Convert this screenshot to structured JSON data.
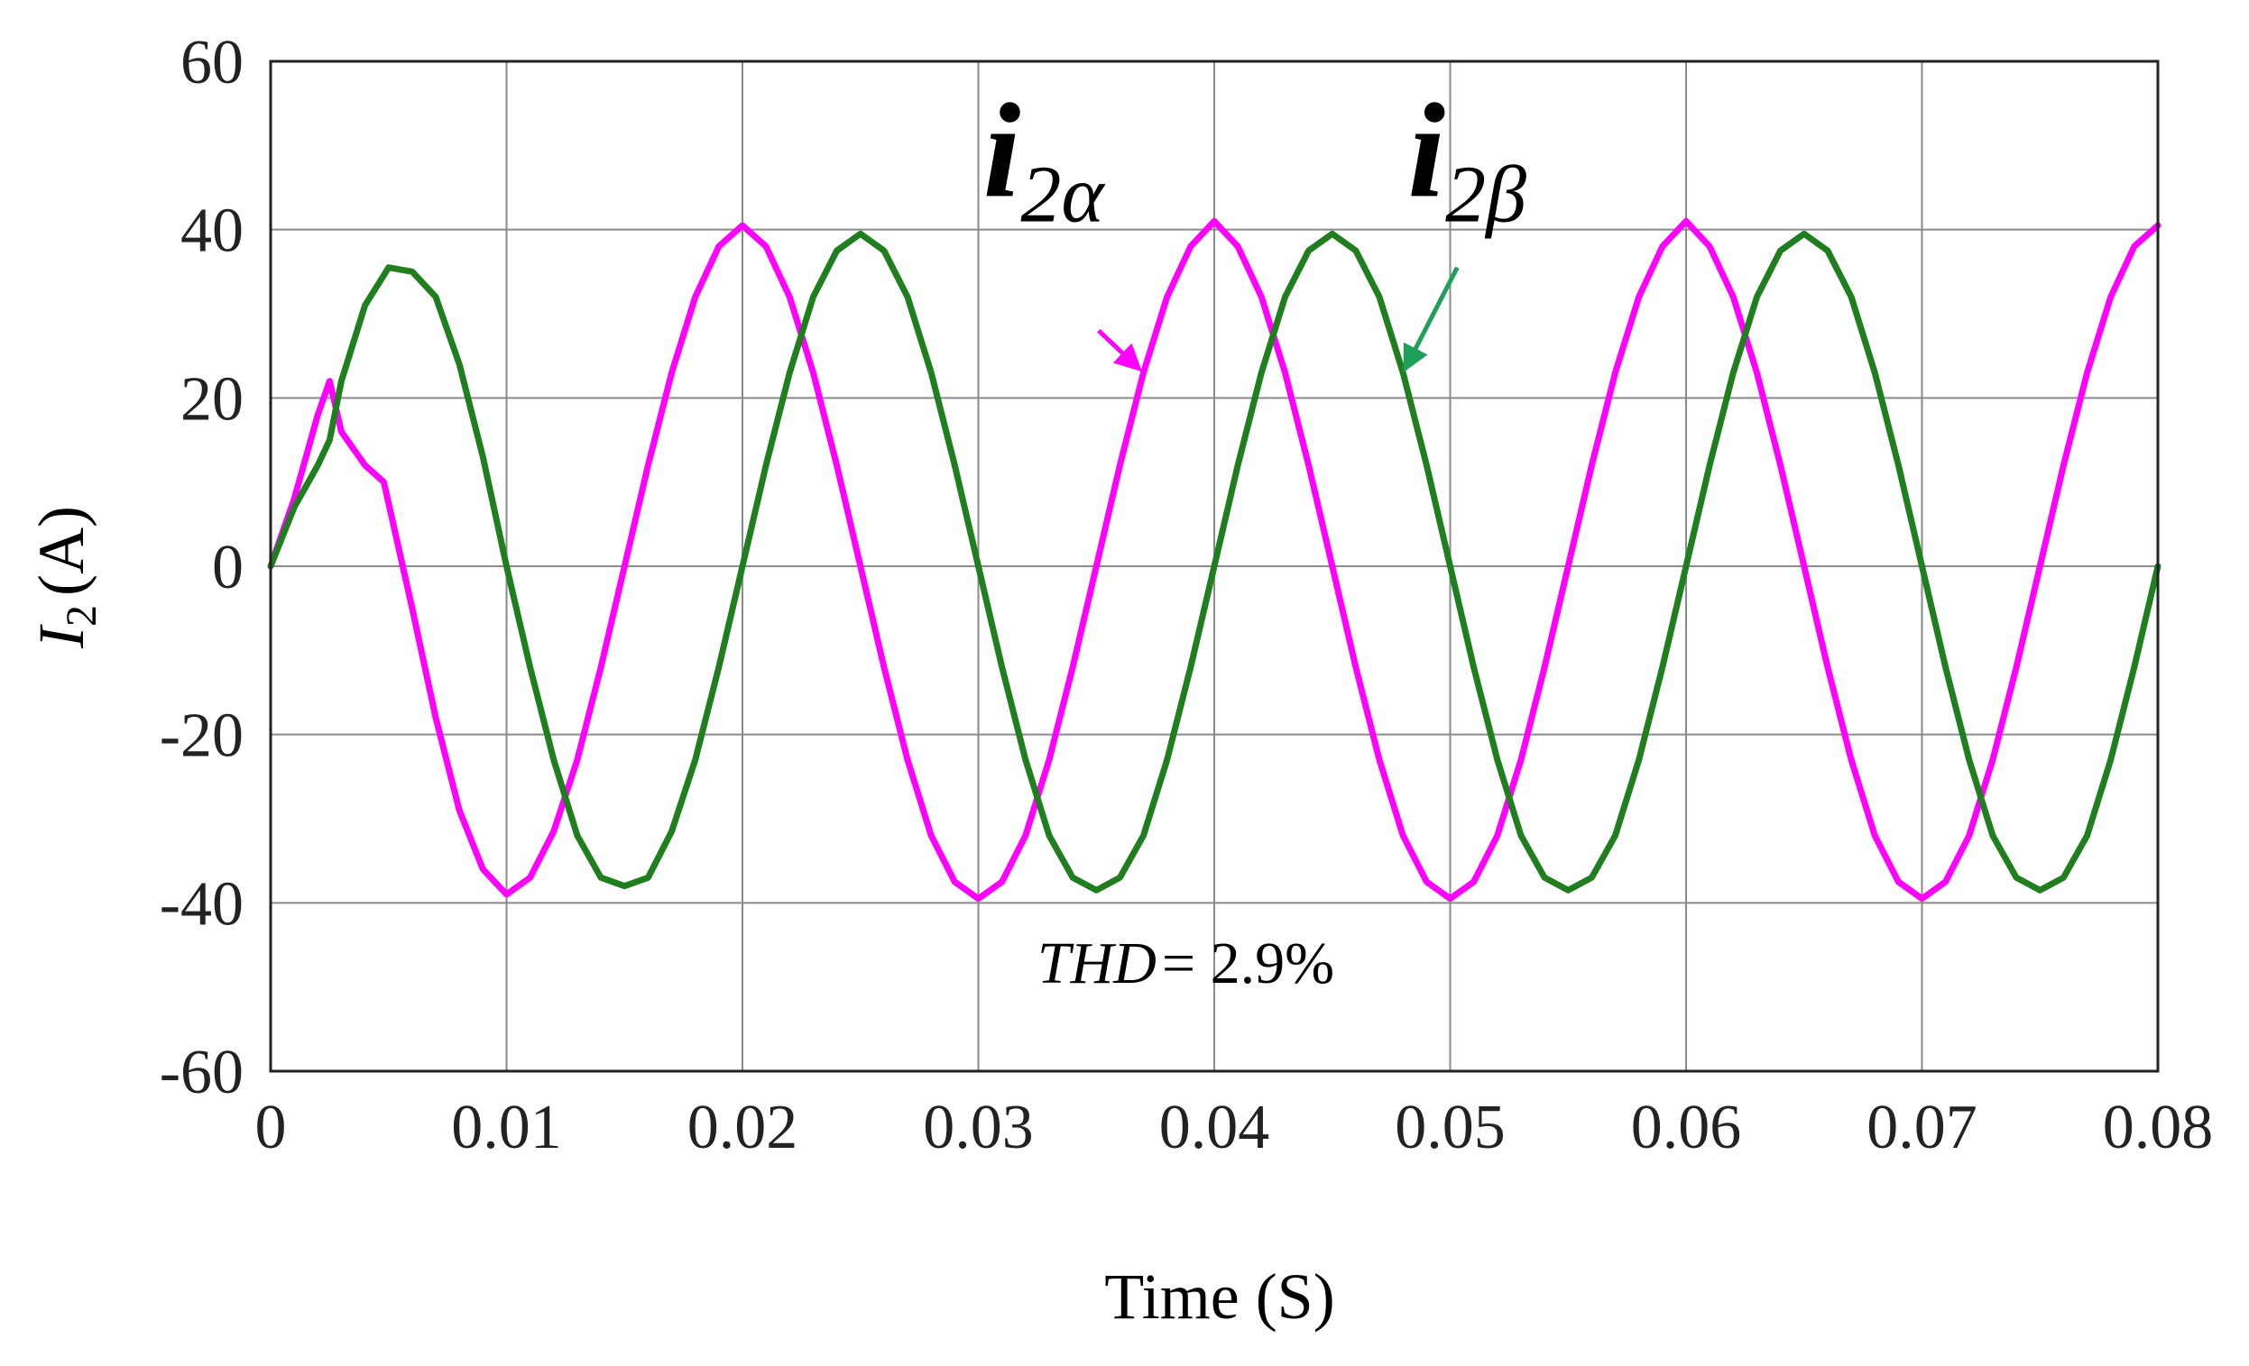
{
  "chart_data": {
    "type": "line",
    "title": "",
    "xlabel": "Time (S)",
    "ylabel": "I2 (A)",
    "ylabel_main": "I",
    "ylabel_sub": "2",
    "ylabel_unit": "(A)",
    "xlim": [
      0,
      0.08
    ],
    "ylim": [
      -60,
      60
    ],
    "xticks": [
      0,
      0.01,
      0.02,
      0.03,
      0.04,
      0.05,
      0.06,
      0.07,
      0.08
    ],
    "xtick_labels": [
      "0",
      "0.01",
      "0.02",
      "0.03",
      "0.04",
      "0.05",
      "0.06",
      "0.07",
      "0.08"
    ],
    "yticks": [
      60,
      40,
      20,
      0,
      -20,
      -40,
      -60
    ],
    "ytick_labels": [
      "60",
      "40",
      "20",
      "0",
      "-20",
      "-40",
      "-60"
    ],
    "grid": true,
    "series": [
      {
        "name": "i2α",
        "color": "#ff00ff",
        "points": [
          [
            0.0,
            0.0
          ],
          [
            0.001,
            8.0
          ],
          [
            0.002,
            18.0
          ],
          [
            0.0025,
            22.0
          ],
          [
            0.003,
            16.0
          ],
          [
            0.004,
            12.0
          ],
          [
            0.0048,
            10.0
          ],
          [
            0.006,
            -5.0
          ],
          [
            0.007,
            -18.0
          ],
          [
            0.008,
            -29.0
          ],
          [
            0.009,
            -36.0
          ],
          [
            0.01,
            -39.0
          ],
          [
            0.011,
            -37.0
          ],
          [
            0.012,
            -31.5
          ],
          [
            0.013,
            -23.0
          ],
          [
            0.014,
            -12.0
          ],
          [
            0.015,
            0.0
          ],
          [
            0.016,
            12.0
          ],
          [
            0.017,
            23.0
          ],
          [
            0.018,
            32.0
          ],
          [
            0.019,
            38.0
          ],
          [
            0.02,
            40.5
          ],
          [
            0.021,
            38.0
          ],
          [
            0.022,
            32.0
          ],
          [
            0.023,
            23.0
          ],
          [
            0.024,
            12.0
          ],
          [
            0.025,
            0.0
          ],
          [
            0.026,
            -12.0
          ],
          [
            0.027,
            -23.0
          ],
          [
            0.028,
            -32.0
          ],
          [
            0.029,
            -37.5
          ],
          [
            0.03,
            -39.5
          ],
          [
            0.031,
            -37.5
          ],
          [
            0.032,
            -32.0
          ],
          [
            0.033,
            -23.0
          ],
          [
            0.034,
            -12.0
          ],
          [
            0.035,
            0.0
          ],
          [
            0.036,
            12.0
          ],
          [
            0.037,
            23.0
          ],
          [
            0.038,
            32.0
          ],
          [
            0.039,
            38.0
          ],
          [
            0.04,
            41.0
          ],
          [
            0.041,
            38.0
          ],
          [
            0.042,
            32.0
          ],
          [
            0.043,
            23.0
          ],
          [
            0.044,
            12.0
          ],
          [
            0.045,
            0.0
          ],
          [
            0.046,
            -12.0
          ],
          [
            0.047,
            -23.0
          ],
          [
            0.048,
            -32.0
          ],
          [
            0.049,
            -37.5
          ],
          [
            0.05,
            -39.5
          ],
          [
            0.051,
            -37.5
          ],
          [
            0.052,
            -32.0
          ],
          [
            0.053,
            -23.0
          ],
          [
            0.054,
            -12.0
          ],
          [
            0.055,
            0.0
          ],
          [
            0.056,
            12.0
          ],
          [
            0.057,
            23.0
          ],
          [
            0.058,
            32.0
          ],
          [
            0.059,
            38.0
          ],
          [
            0.06,
            41.0
          ],
          [
            0.061,
            38.0
          ],
          [
            0.062,
            32.0
          ],
          [
            0.063,
            23.0
          ],
          [
            0.064,
            12.0
          ],
          [
            0.065,
            0.0
          ],
          [
            0.066,
            -12.0
          ],
          [
            0.067,
            -23.0
          ],
          [
            0.068,
            -32.0
          ],
          [
            0.069,
            -37.5
          ],
          [
            0.07,
            -39.5
          ],
          [
            0.071,
            -37.5
          ],
          [
            0.072,
            -32.0
          ],
          [
            0.073,
            -23.0
          ],
          [
            0.074,
            -12.0
          ],
          [
            0.075,
            0.0
          ],
          [
            0.076,
            12.0
          ],
          [
            0.077,
            23.0
          ],
          [
            0.078,
            32.0
          ],
          [
            0.079,
            38.0
          ],
          [
            0.08,
            40.5
          ]
        ]
      },
      {
        "name": "i2β",
        "color": "#1f7f1f",
        "points": [
          [
            0.0,
            0.0
          ],
          [
            0.001,
            7.0
          ],
          [
            0.002,
            12.0
          ],
          [
            0.0025,
            15.0
          ],
          [
            0.003,
            22.0
          ],
          [
            0.004,
            31.0
          ],
          [
            0.005,
            35.5
          ],
          [
            0.006,
            35.0
          ],
          [
            0.007,
            32.0
          ],
          [
            0.008,
            24.0
          ],
          [
            0.009,
            13.0
          ],
          [
            0.01,
            0.0
          ],
          [
            0.011,
            -12.0
          ],
          [
            0.012,
            -23.0
          ],
          [
            0.013,
            -32.0
          ],
          [
            0.014,
            -37.0
          ],
          [
            0.015,
            -38.0
          ],
          [
            0.016,
            -37.0
          ],
          [
            0.017,
            -31.5
          ],
          [
            0.018,
            -23.0
          ],
          [
            0.019,
            -12.0
          ],
          [
            0.02,
            0.0
          ],
          [
            0.021,
            12.0
          ],
          [
            0.022,
            23.0
          ],
          [
            0.023,
            32.0
          ],
          [
            0.024,
            37.5
          ],
          [
            0.025,
            39.5
          ],
          [
            0.026,
            37.5
          ],
          [
            0.027,
            32.0
          ],
          [
            0.028,
            23.0
          ],
          [
            0.029,
            12.0
          ],
          [
            0.03,
            0.0
          ],
          [
            0.031,
            -12.0
          ],
          [
            0.032,
            -23.0
          ],
          [
            0.033,
            -32.0
          ],
          [
            0.034,
            -37.0
          ],
          [
            0.035,
            -38.5
          ],
          [
            0.036,
            -37.0
          ],
          [
            0.037,
            -32.0
          ],
          [
            0.038,
            -23.0
          ],
          [
            0.039,
            -12.0
          ],
          [
            0.04,
            0.0
          ],
          [
            0.041,
            12.0
          ],
          [
            0.042,
            23.0
          ],
          [
            0.043,
            32.0
          ],
          [
            0.044,
            37.5
          ],
          [
            0.045,
            39.5
          ],
          [
            0.046,
            37.5
          ],
          [
            0.047,
            32.0
          ],
          [
            0.048,
            23.0
          ],
          [
            0.049,
            12.0
          ],
          [
            0.05,
            0.0
          ],
          [
            0.051,
            -12.0
          ],
          [
            0.052,
            -23.0
          ],
          [
            0.053,
            -32.0
          ],
          [
            0.054,
            -37.0
          ],
          [
            0.055,
            -38.5
          ],
          [
            0.056,
            -37.0
          ],
          [
            0.057,
            -32.0
          ],
          [
            0.058,
            -23.0
          ],
          [
            0.059,
            -12.0
          ],
          [
            0.06,
            0.0
          ],
          [
            0.061,
            12.0
          ],
          [
            0.062,
            23.0
          ],
          [
            0.063,
            32.0
          ],
          [
            0.064,
            37.5
          ],
          [
            0.065,
            39.5
          ],
          [
            0.066,
            37.5
          ],
          [
            0.067,
            32.0
          ],
          [
            0.068,
            23.0
          ],
          [
            0.069,
            12.0
          ],
          [
            0.07,
            0.0
          ],
          [
            0.071,
            -12.0
          ],
          [
            0.072,
            -23.0
          ],
          [
            0.073,
            -32.0
          ],
          [
            0.074,
            -37.0
          ],
          [
            0.075,
            -38.5
          ],
          [
            0.076,
            -37.0
          ],
          [
            0.077,
            -32.0
          ],
          [
            0.078,
            -23.0
          ],
          [
            0.079,
            -12.0
          ],
          [
            0.08,
            0.0
          ]
        ]
      }
    ],
    "annotations": [
      {
        "id": "label-i2a",
        "main": "i",
        "sub": "2α",
        "color": "#ff00ff",
        "text_at": [
          0.0302,
          44
        ],
        "arrow_from": [
          0.0351,
          28
        ],
        "arrow_to": [
          0.0368,
          23.5
        ]
      },
      {
        "id": "label-i2b",
        "main": "i",
        "sub": "2β",
        "color": "#1fa05a",
        "text_at": [
          0.0482,
          44
        ],
        "arrow_from": [
          0.0503,
          35.5
        ],
        "arrow_to": [
          0.0481,
          23.5
        ]
      }
    ],
    "thd_text": {
      "label": "THD",
      "value": "= 2.9%",
      "at": [
        0.0325,
        -49.5
      ]
    }
  }
}
